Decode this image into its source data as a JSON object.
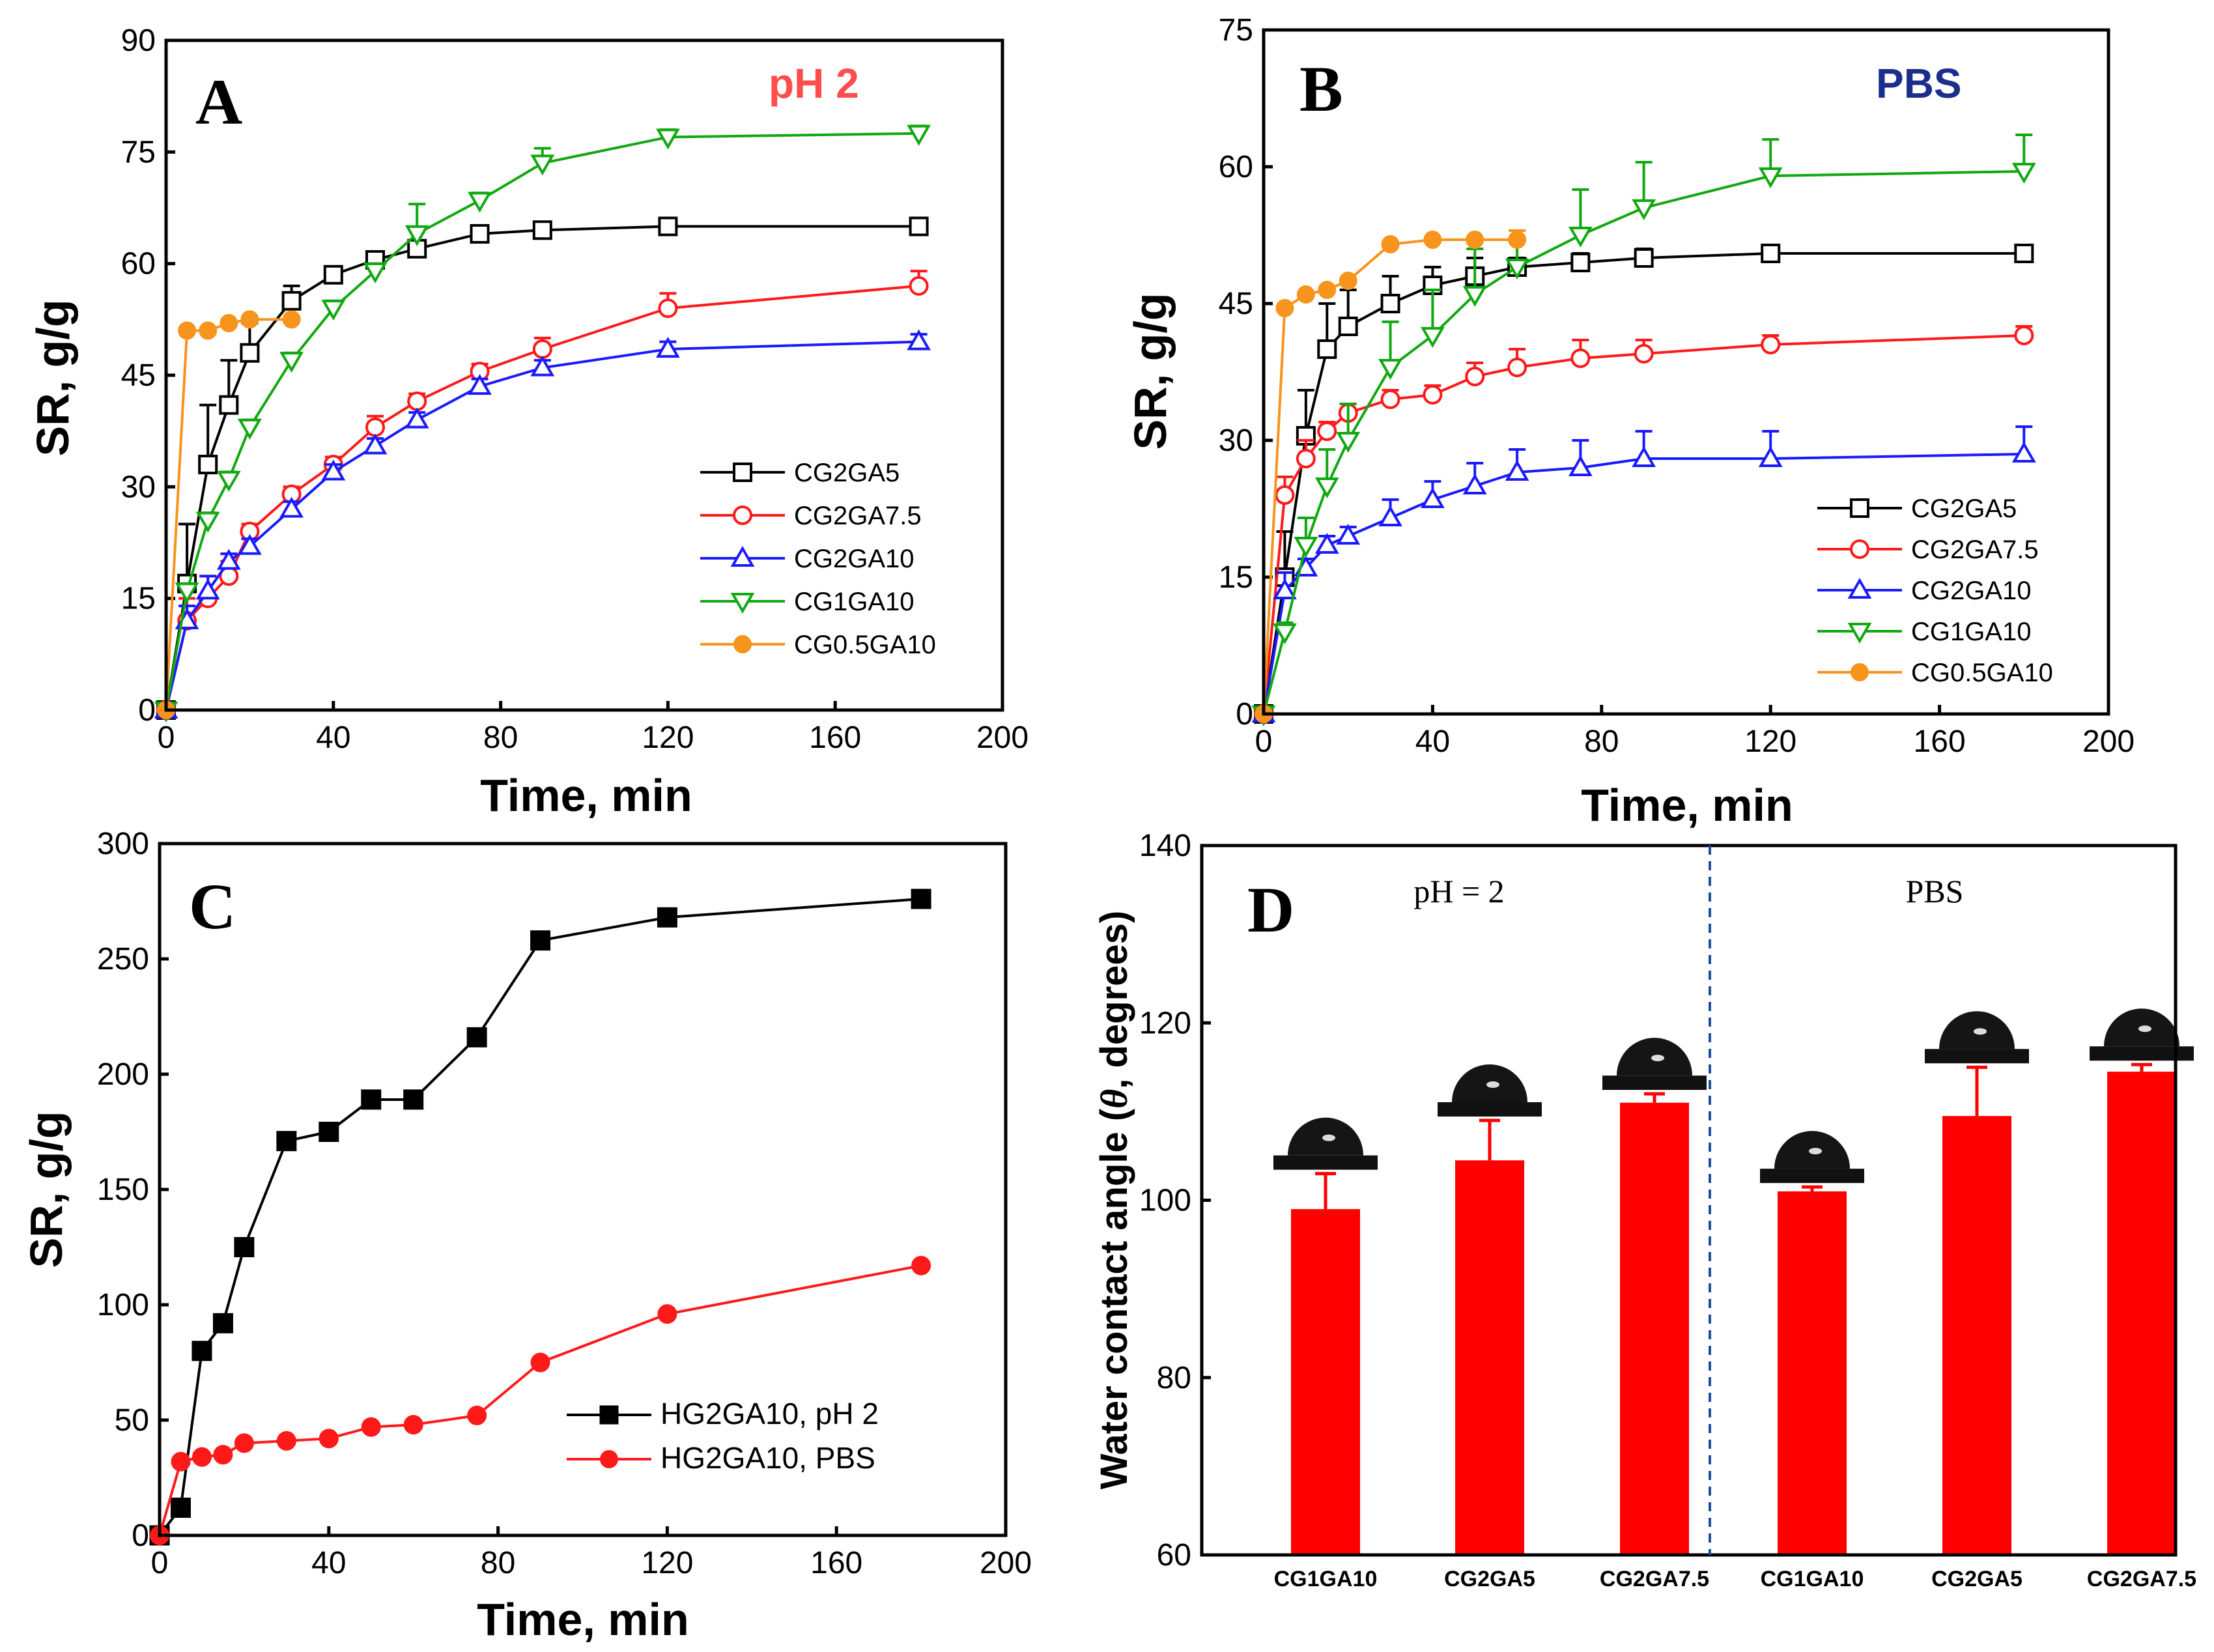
{
  "colors": {
    "CG2GA5": "#000000",
    "CG2GA7.5": "#ff1a1a",
    "CG2GA10": "#1a1aff",
    "CG1GA10": "#11a811",
    "CG0.5GA10": "#f7941d",
    "pH2_label": "#ff4d4d",
    "PBS_label": "#1a2e8a",
    "bar": "#ff0000",
    "divider": "#1f4e9e"
  },
  "chart_data": [
    {
      "panel": "A",
      "type": "line",
      "condition": "pH 2",
      "xlabel": "Time, min",
      "ylabel": "SR, g/g",
      "xlim": [
        0,
        200
      ],
      "ylim": [
        0,
        90
      ],
      "xticks": [
        "0",
        "40",
        "80",
        "120",
        "160",
        "200"
      ],
      "yticks": [
        "0",
        "15",
        "30",
        "45",
        "60",
        "75",
        "90"
      ],
      "legend_position": "bottom-right",
      "series": [
        {
          "name": "CG2GA5",
          "marker": "square",
          "x": [
            0,
            5,
            10,
            15,
            20,
            30,
            40,
            50,
            60,
            75,
            90,
            120,
            180
          ],
          "y": [
            0,
            17,
            33,
            41,
            48,
            55,
            58.5,
            60.5,
            62,
            64,
            64.5,
            65,
            65
          ],
          "err": [
            0,
            8,
            8,
            6,
            4,
            2,
            1,
            1,
            1,
            1,
            0.5,
            0.5,
            0.5
          ]
        },
        {
          "name": "CG2GA7.5",
          "marker": "circle",
          "x": [
            0,
            5,
            10,
            15,
            20,
            30,
            40,
            50,
            60,
            75,
            90,
            120,
            180
          ],
          "y": [
            0,
            12,
            15,
            18,
            24,
            29,
            33,
            38,
            41.5,
            45.5,
            48.5,
            54,
            57
          ],
          "err": [
            0,
            3,
            3,
            2,
            1,
            1,
            1,
            1.5,
            1,
            1,
            1.5,
            2,
            2
          ]
        },
        {
          "name": "CG2GA10",
          "marker": "triangle-up",
          "x": [
            0,
            5,
            10,
            15,
            20,
            30,
            40,
            50,
            60,
            75,
            90,
            120,
            180
          ],
          "y": [
            0,
            12,
            16,
            20,
            22,
            27,
            32,
            35.5,
            39,
            43.5,
            46,
            48.5,
            49.5
          ],
          "err": [
            0,
            2,
            2,
            1,
            1,
            1,
            1,
            1,
            1,
            1,
            1,
            1,
            1
          ]
        },
        {
          "name": "CG1GA10",
          "marker": "triangle-down",
          "x": [
            0,
            5,
            10,
            15,
            20,
            30,
            40,
            50,
            60,
            75,
            90,
            120,
            180
          ],
          "y": [
            0,
            16,
            25.5,
            31,
            38,
            47,
            54,
            59,
            64,
            68.5,
            73.5,
            77,
            77.5
          ],
          "err": [
            0,
            1,
            1,
            1,
            1,
            1,
            1,
            1,
            4,
            1,
            2,
            1,
            1
          ]
        },
        {
          "name": "CG0.5GA10",
          "marker": "filled-circle",
          "x": [
            0,
            5,
            10,
            15,
            20,
            30
          ],
          "y": [
            0,
            51,
            51,
            52,
            52.5,
            52.5
          ],
          "err": [
            0,
            0,
            0,
            0,
            0,
            0
          ]
        }
      ]
    },
    {
      "panel": "B",
      "type": "line",
      "condition": "PBS",
      "xlabel": "Time, min",
      "ylabel": "SR, g/g",
      "xlim": [
        0,
        200
      ],
      "ylim": [
        0,
        75
      ],
      "xticks": [
        "0",
        "40",
        "80",
        "120",
        "160",
        "200"
      ],
      "yticks": [
        "0",
        "15",
        "30",
        "45",
        "60",
        "75"
      ],
      "legend_position": "bottom-right",
      "series": [
        {
          "name": "CG2GA5",
          "marker": "square",
          "x": [
            0,
            5,
            10,
            15,
            20,
            30,
            40,
            50,
            60,
            75,
            90,
            120,
            180
          ],
          "y": [
            0,
            15,
            30.5,
            40,
            42.5,
            45,
            47,
            48,
            49,
            49.5,
            50,
            50.5,
            50.5
          ],
          "err": [
            0,
            5,
            5,
            5,
            4,
            3,
            2,
            2,
            1,
            1,
            1,
            0.5,
            0.5
          ]
        },
        {
          "name": "CG2GA7.5",
          "marker": "circle",
          "x": [
            0,
            5,
            10,
            15,
            20,
            30,
            40,
            50,
            60,
            75,
            90,
            120,
            180
          ],
          "y": [
            0,
            24,
            28,
            31,
            33,
            34.5,
            35,
            37,
            38,
            39,
            39.5,
            40.5,
            41.5
          ],
          "err": [
            0,
            2,
            2,
            1,
            1,
            1,
            1,
            1.5,
            2,
            2,
            1.5,
            1,
            1
          ]
        },
        {
          "name": "CG2GA10",
          "marker": "triangle-up",
          "x": [
            0,
            5,
            10,
            15,
            20,
            30,
            40,
            50,
            60,
            75,
            90,
            120,
            180
          ],
          "y": [
            0,
            13.5,
            16,
            18.5,
            19.5,
            21.5,
            23.5,
            25,
            26.5,
            27,
            28,
            28,
            28.5
          ],
          "err": [
            0,
            2,
            1,
            1,
            1,
            2,
            2,
            2.5,
            2.5,
            3,
            3,
            3,
            3
          ]
        },
        {
          "name": "CG1GA10",
          "marker": "triangle-down",
          "x": [
            0,
            5,
            10,
            15,
            20,
            30,
            40,
            50,
            60,
            75,
            90,
            120,
            180
          ],
          "y": [
            0,
            9,
            18.5,
            25,
            30,
            38,
            41.5,
            46,
            49,
            52.5,
            55.5,
            59,
            59.5
          ],
          "err": [
            0,
            1,
            3,
            4,
            4,
            5,
            5,
            5,
            4,
            5,
            5,
            4,
            4
          ]
        },
        {
          "name": "CG0.5GA10",
          "marker": "filled-circle",
          "x": [
            0,
            5,
            10,
            15,
            20,
            30,
            40,
            50,
            60
          ],
          "y": [
            0,
            44.5,
            46,
            46.5,
            47.5,
            51.5,
            52,
            52,
            52
          ],
          "err": [
            0,
            0,
            0,
            0,
            0,
            0,
            0,
            0,
            1
          ]
        }
      ]
    },
    {
      "panel": "C",
      "type": "line",
      "xlabel": "Time, min",
      "ylabel": "SR, g/g",
      "xlim": [
        0,
        200
      ],
      "ylim": [
        0,
        300
      ],
      "xticks": [
        "0",
        "40",
        "80",
        "120",
        "160",
        "200"
      ],
      "yticks": [
        "0",
        "50",
        "100",
        "150",
        "200",
        "250",
        "300"
      ],
      "legend_position": "bottom-right",
      "series": [
        {
          "name": "HG2GA10, pH 2",
          "marker": "filled-square",
          "x": [
            0,
            5,
            10,
            15,
            20,
            30,
            40,
            50,
            60,
            75,
            90,
            120,
            180
          ],
          "y": [
            0,
            12,
            80,
            92,
            125,
            171,
            175,
            189,
            189,
            216,
            258,
            268,
            276
          ]
        },
        {
          "name": "HG2GA10, PBS",
          "marker": "filled-circle",
          "x": [
            0,
            5,
            10,
            15,
            20,
            30,
            40,
            50,
            60,
            75,
            90,
            120,
            180
          ],
          "y": [
            0,
            32,
            34,
            35,
            40,
            41,
            42,
            47,
            48,
            52,
            75,
            96,
            117
          ]
        }
      ]
    },
    {
      "panel": "D",
      "type": "bar",
      "ylabel_prefix": "Water contact angle (",
      "ylabel_symbol": "θ",
      "ylabel_suffix": ", degrees)",
      "ylim": [
        60,
        140
      ],
      "yticks": [
        "60",
        "80",
        "100",
        "120",
        "140"
      ],
      "groups": [
        "pH = 2",
        "PBS"
      ],
      "categories": [
        "CG1GA10",
        "CG2GA5",
        "CG2GA7.5",
        "CG1GA10",
        "CG2GA5",
        "CG2GA7.5"
      ],
      "values": [
        99,
        104.5,
        111,
        101,
        109.5,
        114.5
      ],
      "err": [
        4,
        4.5,
        1,
        0.5,
        5.5,
        0.8
      ]
    }
  ]
}
